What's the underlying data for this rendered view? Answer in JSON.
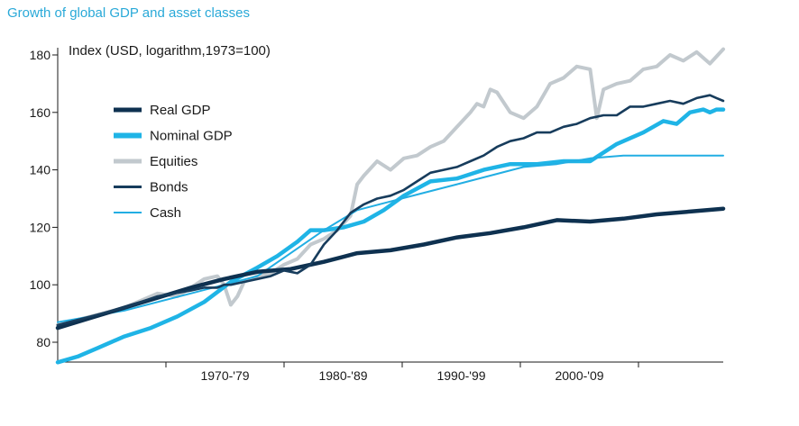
{
  "title": "Growth of global GDP and asset classes",
  "chart_data": {
    "type": "line",
    "title": "Growth of global GDP and asset classes",
    "ylabel": "Index (USD, logarithm,1973=100)",
    "xlabel": "",
    "x_categories": [
      "1970-'79",
      "1980-'89",
      "1990-'99",
      "2000-'09"
    ],
    "ylim": [
      73,
      182
    ],
    "yticks": [
      80,
      100,
      120,
      140,
      160,
      180
    ],
    "grid": false,
    "legend_position": "upper-left",
    "colors": {
      "real_gdp": "#0e3150",
      "nominal_gdp": "#1fb4e6",
      "equities": "#c2c9ce",
      "bonds": "#173c5c",
      "cash": "#22aee3"
    },
    "series": [
      {
        "name": "Real GDP",
        "key": "real_gdp",
        "x": [
          0,
          5,
          10,
          15,
          20,
          25,
          30,
          35,
          40,
          45,
          50,
          55,
          60,
          65,
          70,
          75,
          80,
          85,
          90,
          95,
          100
        ],
        "values": [
          85,
          88.5,
          92,
          95.5,
          99,
          102,
          104.5,
          105.5,
          108,
          111,
          112,
          114,
          116.5,
          118,
          120,
          122.5,
          122,
          123,
          124.5,
          125.5,
          126.5
        ]
      },
      {
        "name": "Nominal GDP",
        "key": "nominal_gdp",
        "x": [
          0,
          3,
          6,
          10,
          14,
          18,
          22,
          26,
          30,
          33,
          36,
          38,
          40,
          43,
          46,
          49,
          52,
          56,
          60,
          64,
          68,
          72,
          76,
          80,
          84,
          88,
          91,
          93,
          95,
          97,
          98,
          99,
          100
        ],
        "values": [
          73,
          75,
          78,
          82,
          85,
          89,
          94,
          101,
          106,
          110,
          115,
          119,
          119,
          120,
          122,
          126,
          131,
          136,
          137,
          140,
          142,
          142,
          143,
          143,
          149,
          153,
          157,
          156,
          160,
          161,
          160,
          161,
          161
        ]
      },
      {
        "name": "Equities",
        "key": "equities",
        "x": [
          0,
          10,
          15,
          18,
          20,
          22,
          24,
          25,
          26,
          27,
          28,
          30,
          32,
          34,
          36,
          38,
          40,
          42,
          44,
          45,
          46,
          48,
          50,
          52,
          54,
          56,
          58,
          60,
          62,
          63,
          64,
          65,
          66,
          68,
          70,
          72,
          74,
          76,
          78,
          80,
          81,
          82,
          84,
          86,
          88,
          90,
          92,
          94,
          96,
          98,
          100
        ],
        "values": [
          86,
          92,
          97,
          96,
          99,
          102,
          103,
          100,
          93,
          96,
          101,
          103,
          104,
          107,
          109,
          114,
          116,
          119,
          124,
          135,
          138,
          143,
          140,
          144,
          145,
          148,
          150,
          155,
          160,
          163,
          162,
          168,
          167,
          160,
          158,
          162,
          170,
          172,
          176,
          175,
          158,
          168,
          170,
          171,
          175,
          176,
          180,
          178,
          181,
          177,
          182
        ]
      },
      {
        "name": "Bonds",
        "key": "bonds",
        "x": [
          0,
          10,
          15,
          20,
          22,
          24,
          25,
          26,
          28,
          30,
          32,
          34,
          36,
          38,
          40,
          42,
          44,
          46,
          48,
          50,
          52,
          54,
          56,
          58,
          60,
          62,
          64,
          66,
          68,
          70,
          72,
          74,
          76,
          78,
          80,
          82,
          84,
          86,
          88,
          90,
          92,
          94,
          96,
          98,
          99,
          100
        ],
        "values": [
          86,
          92,
          96,
          98,
          99,
          99,
          100,
          100,
          101,
          102,
          103,
          105,
          104,
          107,
          114,
          119,
          125,
          128,
          130,
          131,
          133,
          136,
          139,
          140,
          141,
          143,
          145,
          148,
          150,
          151,
          153,
          153,
          155,
          156,
          158,
          159,
          159,
          162,
          162,
          163,
          164,
          163,
          165,
          166,
          165,
          164
        ]
      },
      {
        "name": "Cash",
        "key": "cash",
        "x": [
          0,
          10,
          20,
          30,
          35,
          40,
          45,
          50,
          55,
          60,
          65,
          70,
          75,
          80,
          85,
          90,
          95,
          100
        ],
        "values": [
          87,
          91,
          97,
          103,
          111,
          119,
          126,
          129,
          132,
          135,
          138,
          141,
          142,
          144,
          145,
          145,
          145,
          145
        ]
      }
    ]
  }
}
